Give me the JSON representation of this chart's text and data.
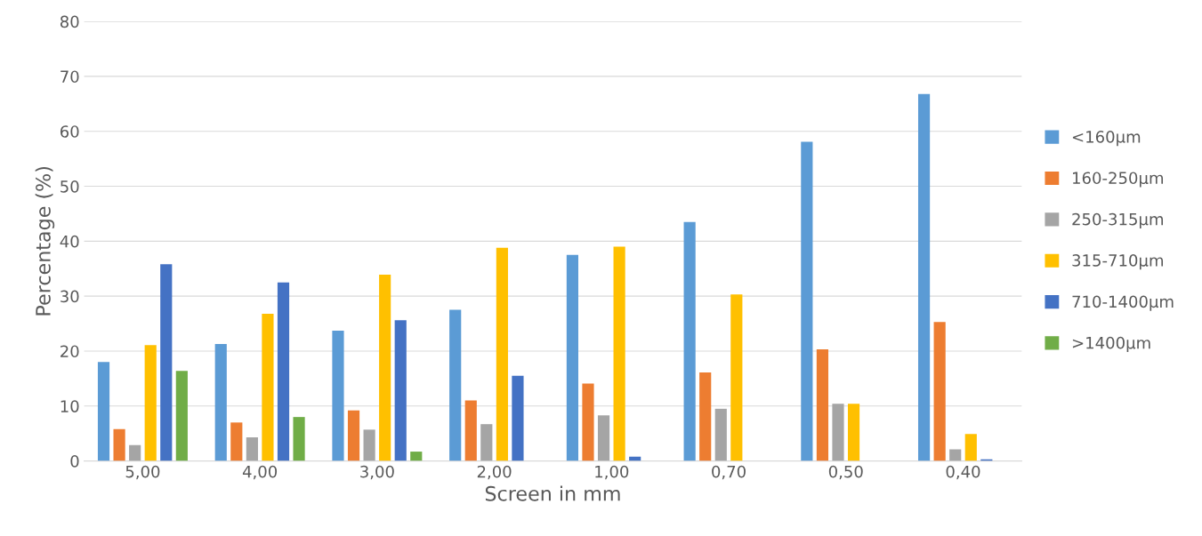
{
  "chart_data": {
    "type": "bar",
    "xlabel": "Screen in mm",
    "ylabel": "Percentage (%)",
    "categories": [
      "5,00",
      "4,00",
      "3,00",
      "2,00",
      "1,00",
      "0,70",
      "0,50",
      "0,40"
    ],
    "series": [
      {
        "name": "<160µm",
        "color": "#5b9bd5",
        "values": [
          18.0,
          21.3,
          23.7,
          27.5,
          37.5,
          43.5,
          58.1,
          66.8
        ]
      },
      {
        "name": "160-250µm",
        "color": "#ed7d31",
        "values": [
          5.8,
          7.0,
          9.2,
          11.0,
          14.1,
          16.1,
          20.3,
          25.3
        ]
      },
      {
        "name": "250-315µm",
        "color": "#a5a5a5",
        "values": [
          2.9,
          4.3,
          5.7,
          6.7,
          8.3,
          9.5,
          10.4,
          2.1
        ]
      },
      {
        "name": "315-710µm",
        "color": "#ffc000",
        "values": [
          21.1,
          26.8,
          33.9,
          38.8,
          39.0,
          30.3,
          10.4,
          4.9
        ]
      },
      {
        "name": "710-1400µm",
        "color": "#4472c4",
        "values": [
          35.8,
          32.5,
          25.6,
          15.5,
          0.8,
          0,
          0,
          0.3
        ]
      },
      {
        "name": ">1400µm",
        "color": "#70ad47",
        "values": [
          16.4,
          8.0,
          1.7,
          0,
          0,
          0,
          0,
          0
        ]
      }
    ],
    "ylim": [
      0,
      80
    ],
    "yticks": [
      0,
      10,
      20,
      30,
      40,
      50,
      60,
      70,
      80
    ],
    "grid": "y",
    "legend": "right"
  }
}
